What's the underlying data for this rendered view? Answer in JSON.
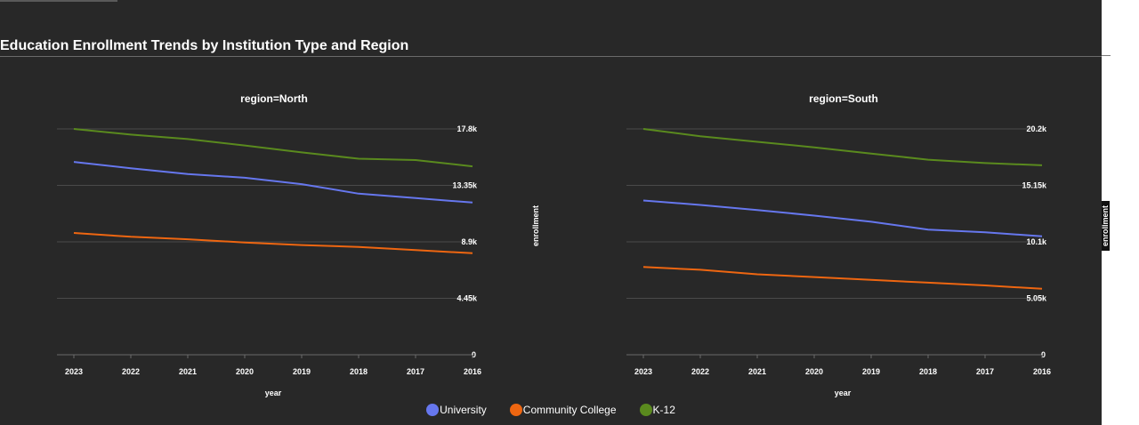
{
  "title": "Education Enrollment Trends by Institution Type and Region",
  "chart_data": {
    "type": "line",
    "x_field": "year",
    "xlabel": "year",
    "ylabel": "enrollment",
    "categories": [
      "2023",
      "2022",
      "2021",
      "2020",
      "2019",
      "2018",
      "2017",
      "2016"
    ],
    "legend_position": "bottom-center",
    "grid": true,
    "panels": [
      {
        "title": "region=North",
        "ylim": [
          0,
          17800
        ],
        "yticks": [
          "0",
          "4.45k",
          "8.9k",
          "13.35k",
          "17.8k"
        ],
        "series": [
          {
            "name": "University",
            "color": "#6677ee",
            "values": [
              15200,
              14700,
              14250,
              13950,
              13450,
              12700,
              12350,
              12000
            ]
          },
          {
            "name": "Community College",
            "color": "#ee6611",
            "values": [
              9600,
              9300,
              9100,
              8850,
              8650,
              8500,
              8250,
              8000
            ]
          },
          {
            "name": "K-12",
            "color": "#5a8a1e",
            "values": [
              17800,
              17350,
              17000,
              16500,
              15950,
              15450,
              15350,
              14850
            ]
          }
        ]
      },
      {
        "title": "region=South",
        "ylim": [
          0,
          20200
        ],
        "yticks": [
          "0",
          "5.05k",
          "10.1k",
          "15.15k",
          "20.2k"
        ],
        "series": [
          {
            "name": "University",
            "color": "#6677ee",
            "values": [
              13800,
              13400,
              12950,
              12450,
              11900,
              11200,
              10950,
              10600
            ]
          },
          {
            "name": "Community College",
            "color": "#ee6611",
            "values": [
              7850,
              7600,
              7200,
              6950,
              6700,
              6450,
              6200,
              5900
            ]
          },
          {
            "name": "K-12",
            "color": "#5a8a1e",
            "values": [
              20200,
              19550,
              19050,
              18550,
              18000,
              17450,
              17150,
              16950
            ]
          }
        ]
      }
    ]
  }
}
